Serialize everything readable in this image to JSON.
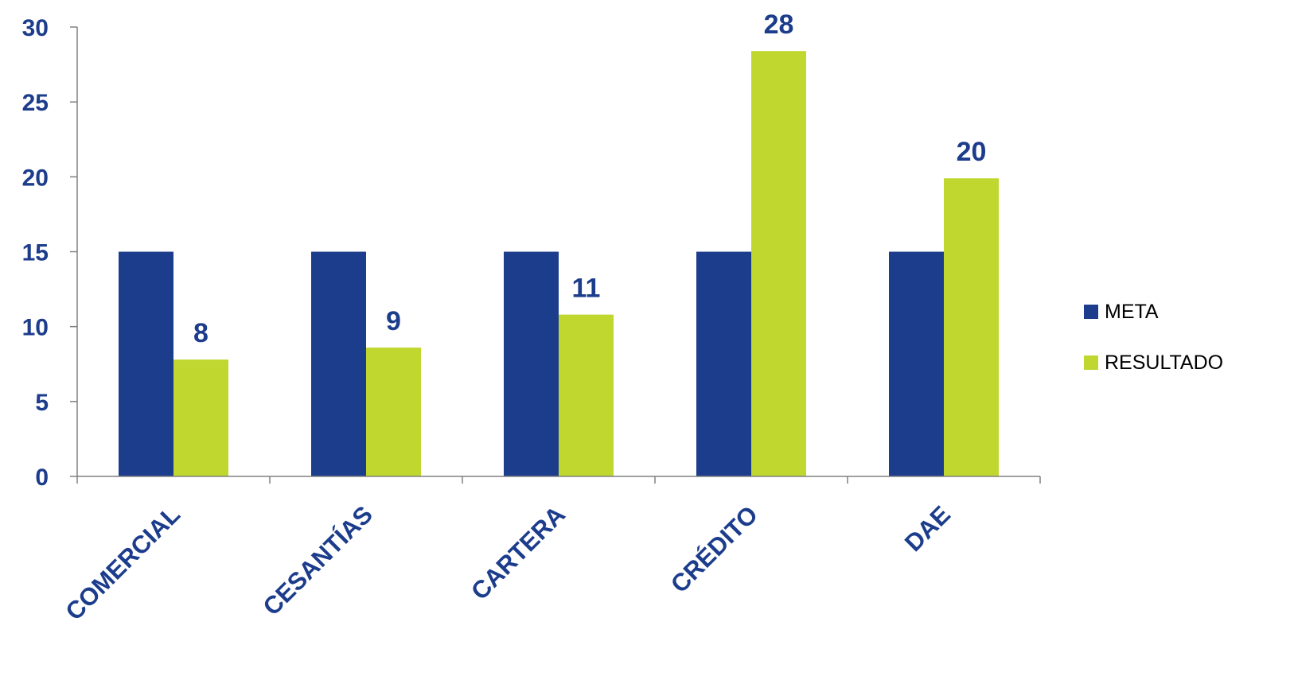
{
  "chart_data": {
    "type": "bar",
    "categories": [
      "COMERCIAL",
      "CESANTÍAS",
      "CARTERA",
      "CRÉDITO",
      "DAE"
    ],
    "series": [
      {
        "name": "META",
        "values": [
          15,
          15,
          15,
          15,
          15
        ],
        "color": "#1C3C8C",
        "data_labels": [
          "",
          "",
          "",
          "",
          ""
        ]
      },
      {
        "name": "RESULTADO",
        "values": [
          7.8,
          8.6,
          10.8,
          28.4,
          19.9
        ],
        "color": "#C0D730",
        "data_labels": [
          "8",
          "9",
          "11",
          "28",
          "20"
        ]
      }
    ],
    "ylim": [
      0,
      30
    ],
    "yticks": [
      "0",
      "5",
      "10",
      "15",
      "20",
      "25",
      "30"
    ],
    "title": "",
    "xlabel": "",
    "ylabel": "",
    "grid": false,
    "legend_position": "right",
    "text_color": "#1C3C8C"
  }
}
